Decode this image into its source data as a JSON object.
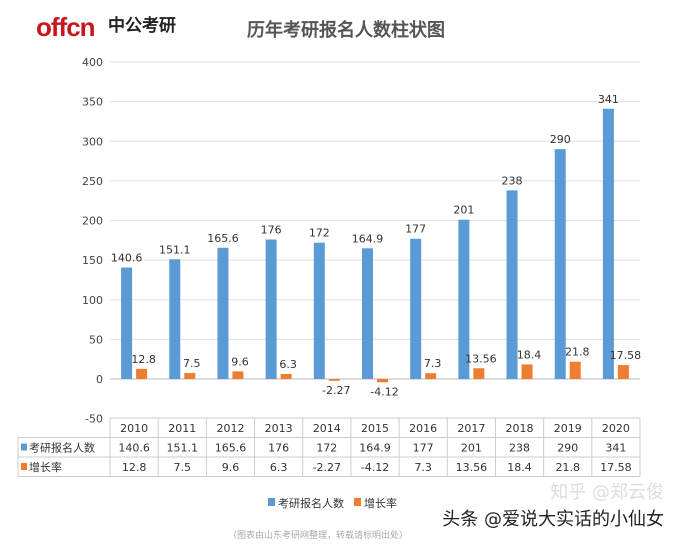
{
  "logo": {
    "brand": "offcn",
    "name": "中公考研"
  },
  "chart_data": {
    "type": "bar",
    "title": "历年考研报名人数柱状图",
    "categories": [
      "2010",
      "2011",
      "2012",
      "2013",
      "2014",
      "2015",
      "2016",
      "2017",
      "2018",
      "2019",
      "2020"
    ],
    "series": [
      {
        "name": "考研报名人数",
        "color": "#5b9bd5",
        "values": [
          140.6,
          151.1,
          165.6,
          176,
          172,
          164.9,
          177,
          201,
          238,
          290,
          341
        ]
      },
      {
        "name": "增长率",
        "color": "#ed7d31",
        "values": [
          12.8,
          7.5,
          9.6,
          6.3,
          -2.27,
          -4.12,
          7.3,
          13.56,
          18.4,
          21.8,
          17.58
        ]
      }
    ],
    "yticks": [
      400,
      350,
      300,
      250,
      200,
      150,
      100,
      50,
      0,
      -50
    ],
    "ylim": [
      -50,
      400
    ],
    "grid": true,
    "data_table": true,
    "legend": "bottom"
  },
  "source_note": "（图表由山东考研网整理，转载请标明出处）",
  "watermark": "头条 @爱说大实话的小仙女",
  "watermark2": "知乎 @郑云俊"
}
